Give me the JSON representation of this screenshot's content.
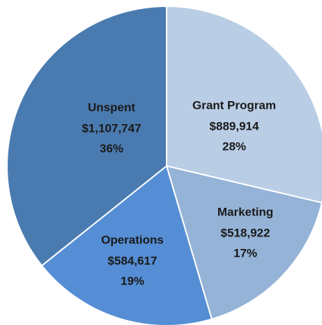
{
  "chart_data": {
    "type": "pie",
    "categories": [
      "Grant Program",
      "Marketing",
      "Operations",
      "Unspent"
    ],
    "values": [
      889914,
      518922,
      584617,
      1107747
    ],
    "value_labels": [
      "$889,914",
      "$518,922",
      "$584,617",
      "$1,107,747"
    ],
    "percent_labels": [
      "28%",
      "17%",
      "19%",
      "36%"
    ],
    "colors": [
      "#b9cde5",
      "#95b3d7",
      "#558ed5",
      "#4a7bb0"
    ]
  }
}
